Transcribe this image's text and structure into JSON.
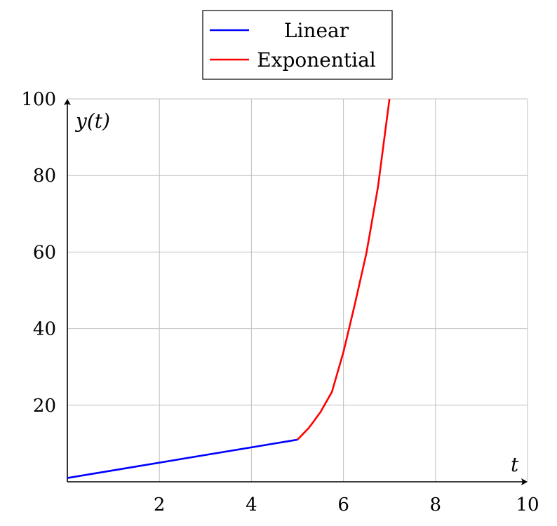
{
  "chart_data": {
    "type": "line",
    "title": "",
    "xlabel": "t",
    "ylabel": "y(t)",
    "xlim": [
      0,
      10
    ],
    "ylim": [
      0,
      100
    ],
    "x_ticks": [
      2,
      4,
      6,
      8,
      10
    ],
    "y_ticks": [
      20,
      40,
      60,
      80,
      100
    ],
    "grid": true,
    "legend_position": "top-center",
    "series": [
      {
        "name": "Linear",
        "color": "#0000ff",
        "points": [
          [
            0,
            1
          ],
          [
            5,
            11
          ]
        ]
      },
      {
        "name": "Exponential",
        "color": "#ff0000",
        "points": [
          [
            5,
            11
          ],
          [
            5.25,
            14.1
          ],
          [
            5.5,
            18.2
          ],
          [
            5.75,
            23.5
          ],
          [
            6,
            33.9
          ],
          [
            6.25,
            46.5
          ],
          [
            6.5,
            59.8
          ],
          [
            6.75,
            77
          ],
          [
            7,
            100
          ]
        ]
      }
    ]
  }
}
